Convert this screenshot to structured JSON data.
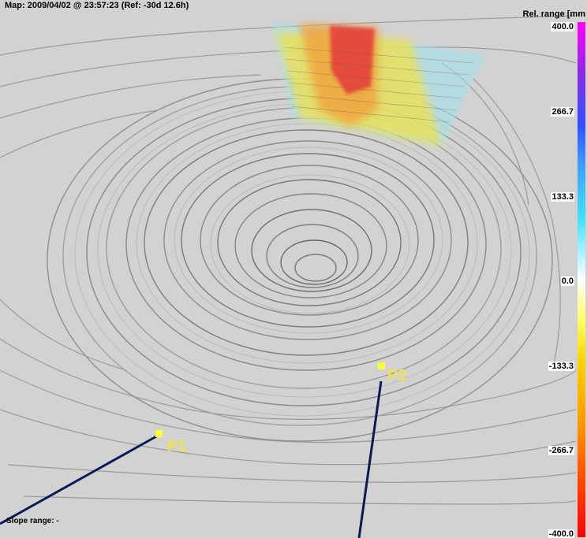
{
  "header": {
    "map_label": "Map: 2009/04/02 @ 23:57:23 (Ref: -30d 12.6h)",
    "range_title": "Rel. range [mm"
  },
  "colorbar": {
    "ticks": [
      "400.0",
      "266.7",
      "133.3",
      "0.0",
      "-133.3",
      "-266.7",
      "-400.0"
    ],
    "colors": [
      "#ff00ff",
      "#3050ff",
      "#40e0ff",
      "#ffffff",
      "#ffff60",
      "#ff9900",
      "#ff0000"
    ]
  },
  "footer": {
    "slope_range": "Slope range:  -"
  },
  "markers": {
    "p1": "P1",
    "p2": "P2"
  }
}
